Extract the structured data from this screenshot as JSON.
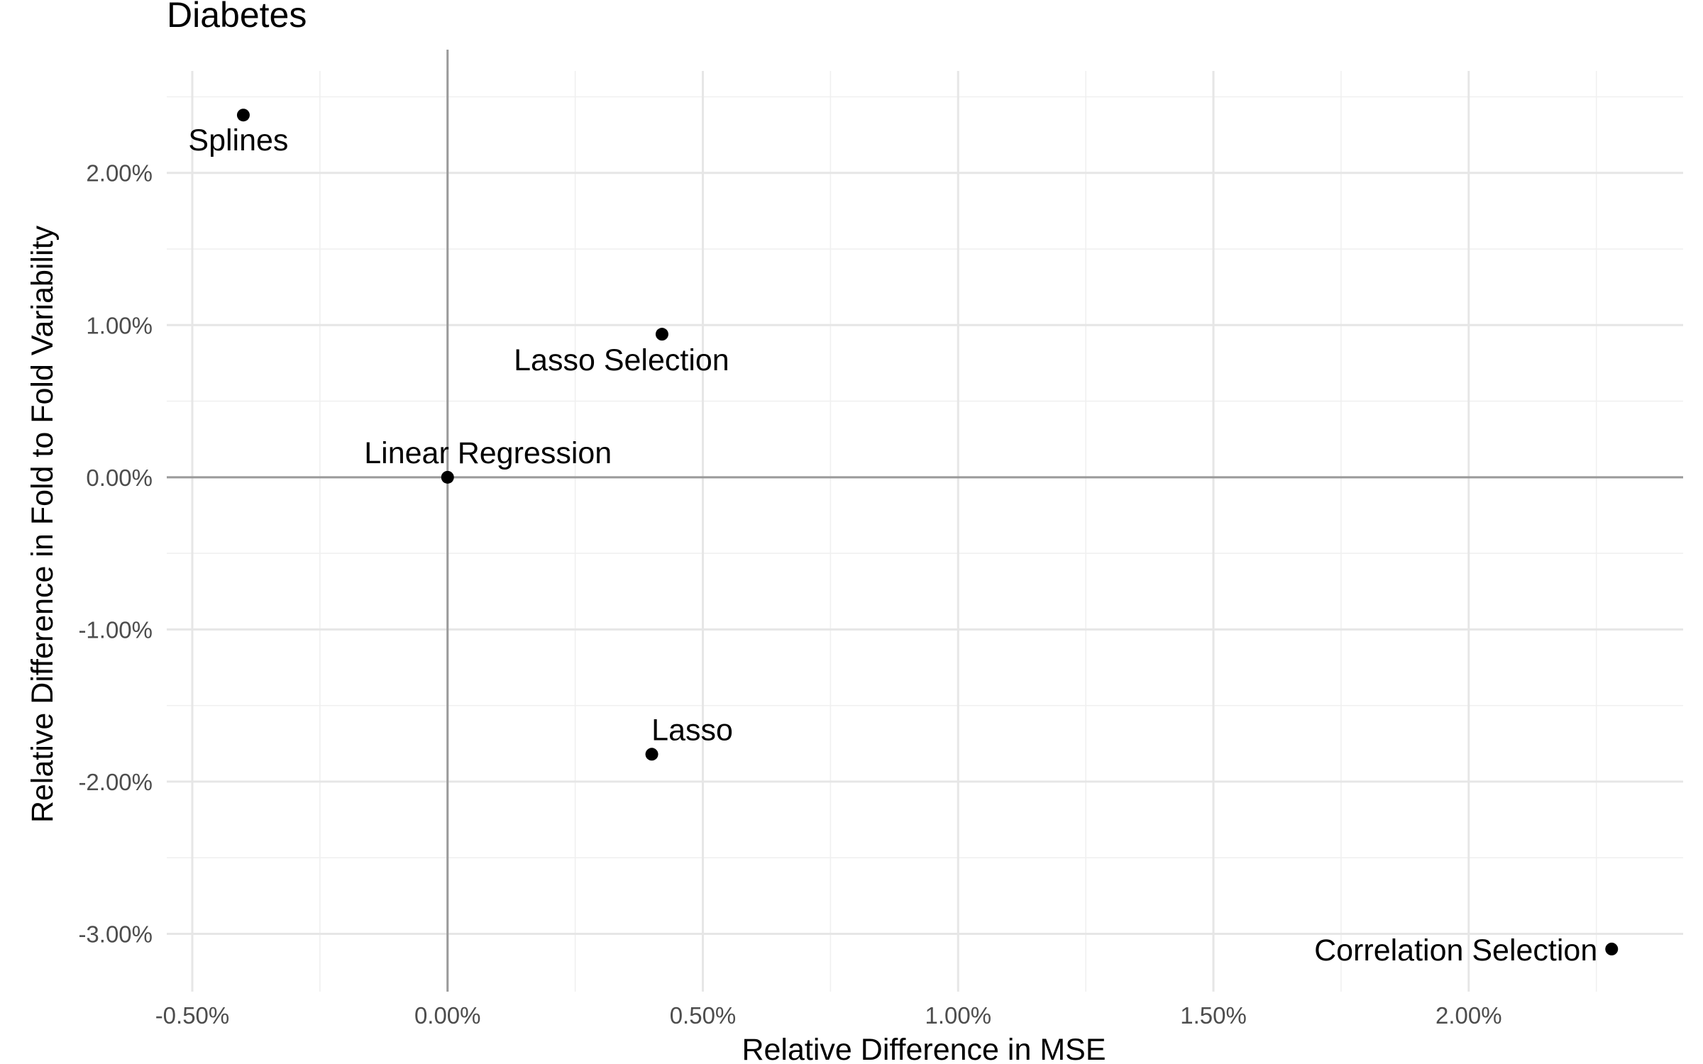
{
  "chart_data": {
    "type": "scatter",
    "title": "Diabetes",
    "xlabel": "Relative Difference in MSE",
    "ylabel": "Relative Difference in Fold to Fold Variability",
    "xlim": [
      -0.55,
      2.42
    ],
    "ylim": [
      -3.38,
      2.67
    ],
    "x_ticks": [
      -0.5,
      0.0,
      0.5,
      1.0,
      1.5,
      2.0
    ],
    "x_tick_labels": [
      "-0.50%",
      "0.00%",
      "0.50%",
      "1.00%",
      "1.50%",
      "2.00%"
    ],
    "y_ticks": [
      2.0,
      1.0,
      0.0,
      -1.0,
      -2.0,
      -3.0
    ],
    "y_tick_labels": [
      "2.00%",
      "1.00%",
      "0.00%",
      "-1.00%",
      "-2.00%",
      "-3.00%"
    ],
    "grid": true,
    "reference_lines": {
      "x": 0,
      "y": 0
    },
    "points": [
      {
        "label": "Splines",
        "x": -0.4,
        "y": 2.38,
        "label_position": "below"
      },
      {
        "label": "Lasso Selection",
        "x": 0.42,
        "y": 0.94,
        "label_position": "below-left"
      },
      {
        "label": "Linear Regression",
        "x": 0.0,
        "y": 0.0,
        "label_position": "above"
      },
      {
        "label": "Lasso",
        "x": 0.4,
        "y": -1.82,
        "label_position": "above"
      },
      {
        "label": "Correlation Selection",
        "x": 2.28,
        "y": -3.1,
        "label_position": "left"
      }
    ]
  }
}
